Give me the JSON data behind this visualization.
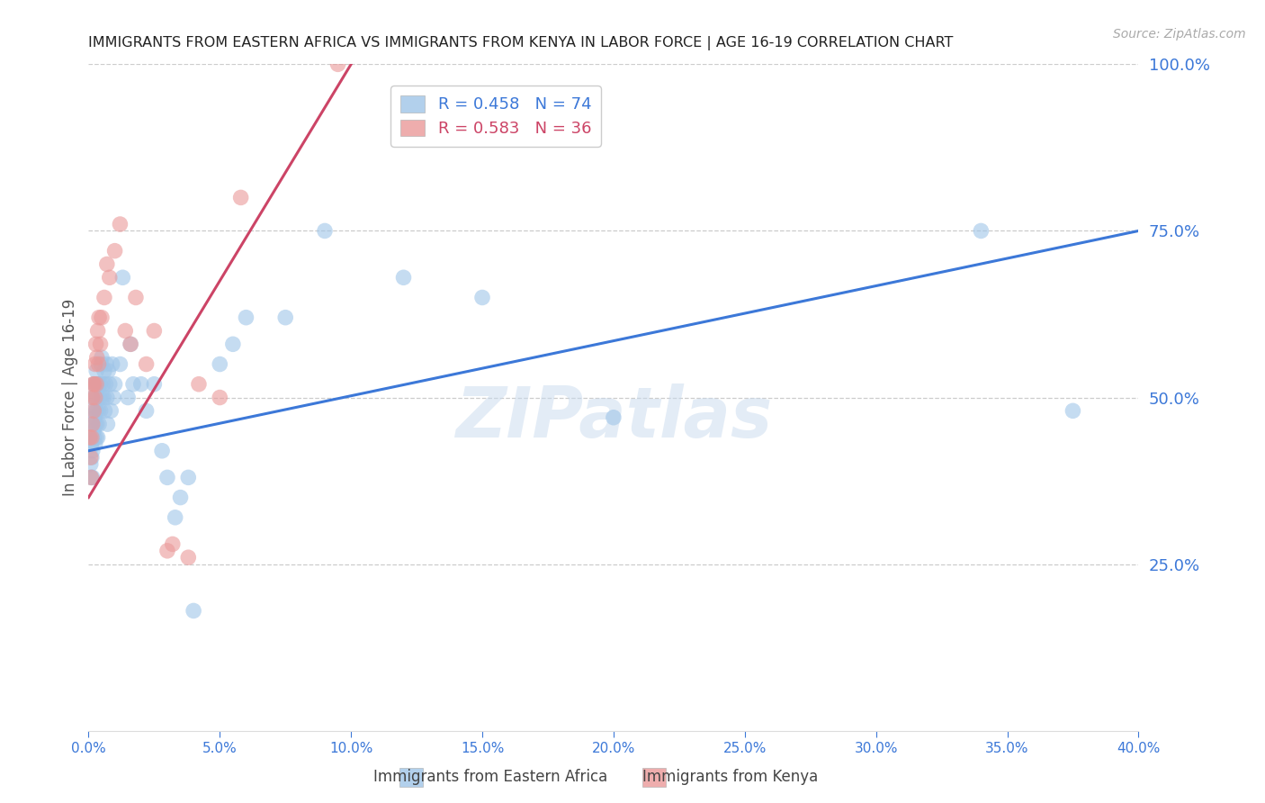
{
  "title": "IMMIGRANTS FROM EASTERN AFRICA VS IMMIGRANTS FROM KENYA IN LABOR FORCE | AGE 16-19 CORRELATION CHART",
  "source": "Source: ZipAtlas.com",
  "ylabel_left": "In Labor Force | Age 16-19",
  "legend_label_blue": "Immigrants from Eastern Africa",
  "legend_label_pink": "Immigrants from Kenya",
  "R_blue": 0.458,
  "N_blue": 74,
  "R_pink": 0.583,
  "N_pink": 36,
  "color_blue": "#9fc5e8",
  "color_pink": "#ea9999",
  "color_line_blue": "#3c78d8",
  "color_line_pink": "#cc4466",
  "color_axis_right": "#3c78d8",
  "color_axis_x": "#3c78d8",
  "color_title": "#222222",
  "color_source": "#aaaaaa",
  "color_grid": "#cccccc",
  "xlim": [
    0.0,
    0.4
  ],
  "ylim": [
    0.0,
    1.0
  ],
  "xticks": [
    0.0,
    0.05,
    0.1,
    0.15,
    0.2,
    0.25,
    0.3,
    0.35,
    0.4
  ],
  "yticks_right": [
    0.25,
    0.5,
    0.75,
    1.0
  ],
  "background": "#ffffff",
  "watermark": "ZIPatlas",
  "blue_x": [
    0.0005,
    0.0008,
    0.001,
    0.001,
    0.0012,
    0.0013,
    0.0015,
    0.0015,
    0.0015,
    0.0018,
    0.002,
    0.002,
    0.0022,
    0.0022,
    0.0023,
    0.0025,
    0.0025,
    0.0025,
    0.0028,
    0.0028,
    0.003,
    0.003,
    0.003,
    0.0032,
    0.0033,
    0.0035,
    0.0035,
    0.0038,
    0.004,
    0.004,
    0.0042,
    0.0045,
    0.0045,
    0.0048,
    0.005,
    0.005,
    0.0055,
    0.0058,
    0.006,
    0.0062,
    0.0065,
    0.0068,
    0.007,
    0.0072,
    0.0075,
    0.008,
    0.0085,
    0.009,
    0.0095,
    0.01,
    0.012,
    0.013,
    0.015,
    0.016,
    0.017,
    0.02,
    0.022,
    0.025,
    0.028,
    0.03,
    0.033,
    0.035,
    0.038,
    0.04,
    0.05,
    0.055,
    0.06,
    0.075,
    0.09,
    0.12,
    0.15,
    0.2,
    0.34,
    0.375
  ],
  "blue_y": [
    0.44,
    0.4,
    0.38,
    0.43,
    0.41,
    0.46,
    0.42,
    0.48,
    0.38,
    0.5,
    0.45,
    0.52,
    0.44,
    0.5,
    0.47,
    0.43,
    0.46,
    0.52,
    0.48,
    0.52,
    0.44,
    0.48,
    0.54,
    0.46,
    0.5,
    0.44,
    0.52,
    0.48,
    0.52,
    0.46,
    0.5,
    0.52,
    0.48,
    0.55,
    0.5,
    0.56,
    0.52,
    0.5,
    0.54,
    0.48,
    0.52,
    0.55,
    0.5,
    0.46,
    0.54,
    0.52,
    0.48,
    0.55,
    0.5,
    0.52,
    0.55,
    0.68,
    0.5,
    0.58,
    0.52,
    0.52,
    0.48,
    0.52,
    0.42,
    0.38,
    0.32,
    0.35,
    0.38,
    0.18,
    0.55,
    0.58,
    0.62,
    0.62,
    0.75,
    0.68,
    0.65,
    0.47,
    0.75,
    0.48
  ],
  "pink_x": [
    0.0005,
    0.0008,
    0.001,
    0.0012,
    0.0015,
    0.0015,
    0.0018,
    0.002,
    0.0022,
    0.0025,
    0.0025,
    0.0028,
    0.003,
    0.0032,
    0.0035,
    0.0038,
    0.004,
    0.0045,
    0.005,
    0.006,
    0.007,
    0.008,
    0.01,
    0.012,
    0.014,
    0.016,
    0.018,
    0.022,
    0.025,
    0.03,
    0.032,
    0.038,
    0.042,
    0.05,
    0.058,
    0.095
  ],
  "pink_y": [
    0.44,
    0.41,
    0.38,
    0.44,
    0.46,
    0.5,
    0.52,
    0.48,
    0.52,
    0.55,
    0.5,
    0.58,
    0.52,
    0.56,
    0.6,
    0.55,
    0.62,
    0.58,
    0.62,
    0.65,
    0.7,
    0.68,
    0.72,
    0.76,
    0.6,
    0.58,
    0.65,
    0.55,
    0.6,
    0.27,
    0.28,
    0.26,
    0.52,
    0.5,
    0.8,
    1.0
  ]
}
